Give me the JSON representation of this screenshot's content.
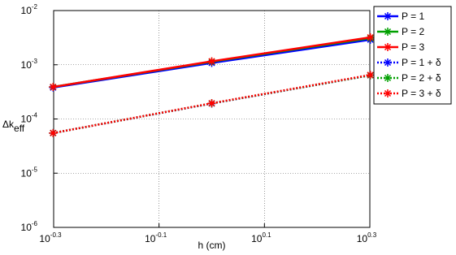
{
  "chart_data": {
    "type": "line",
    "xlabel": "h (cm)",
    "ylabel": "Δk",
    "ylabel_sub": "eff",
    "x": [
      0.5,
      1,
      2
    ],
    "xlog": true,
    "ylog": true,
    "grid": true,
    "legend": "top-right-outside",
    "xlim": [
      0.5012,
      1.9953
    ],
    "ylim": [
      1e-06,
      0.01
    ],
    "xticks": [
      {
        "value": 0.5012,
        "label": "10",
        "sup": "-0.3"
      },
      {
        "value": 0.7943,
        "label": "10",
        "sup": "-0.1"
      },
      {
        "value": 1.2589,
        "label": "10",
        "sup": "0.1"
      },
      {
        "value": 1.9953,
        "label": "10",
        "sup": "0.3"
      }
    ],
    "yticks": [
      {
        "value": 1e-06,
        "label": "10",
        "sup": "-6"
      },
      {
        "value": 1e-05,
        "label": "10",
        "sup": "-5"
      },
      {
        "value": 0.0001,
        "label": "10",
        "sup": "-4"
      },
      {
        "value": 0.001,
        "label": "10",
        "sup": "-3"
      },
      {
        "value": 0.01,
        "label": "10",
        "sup": "-2"
      }
    ],
    "series": [
      {
        "name": "P = 1",
        "color": "#0000ff",
        "dash": "solid",
        "values": [
          0.00038,
          0.00108,
          0.0029
        ]
      },
      {
        "name": "P = 2",
        "color": "#00a000",
        "dash": "solid",
        "values": [
          0.00039,
          0.00114,
          0.0031
        ]
      },
      {
        "name": "P = 3",
        "color": "#ff0000",
        "dash": "solid",
        "values": [
          0.00039,
          0.00116,
          0.0032
        ]
      },
      {
        "name": "P = 1 + δ",
        "color": "#0000ff",
        "dash": "dotted",
        "values": [
          5.5e-05,
          0.000193,
          0.00064
        ]
      },
      {
        "name": "P = 2 + δ",
        "color": "#00a000",
        "dash": "dotted",
        "values": [
          5.5e-05,
          0.000194,
          0.00064
        ]
      },
      {
        "name": "P = 3 + δ",
        "color": "#ff0000",
        "dash": "dotted",
        "values": [
          5.5e-05,
          0.000195,
          0.00065
        ]
      }
    ]
  }
}
